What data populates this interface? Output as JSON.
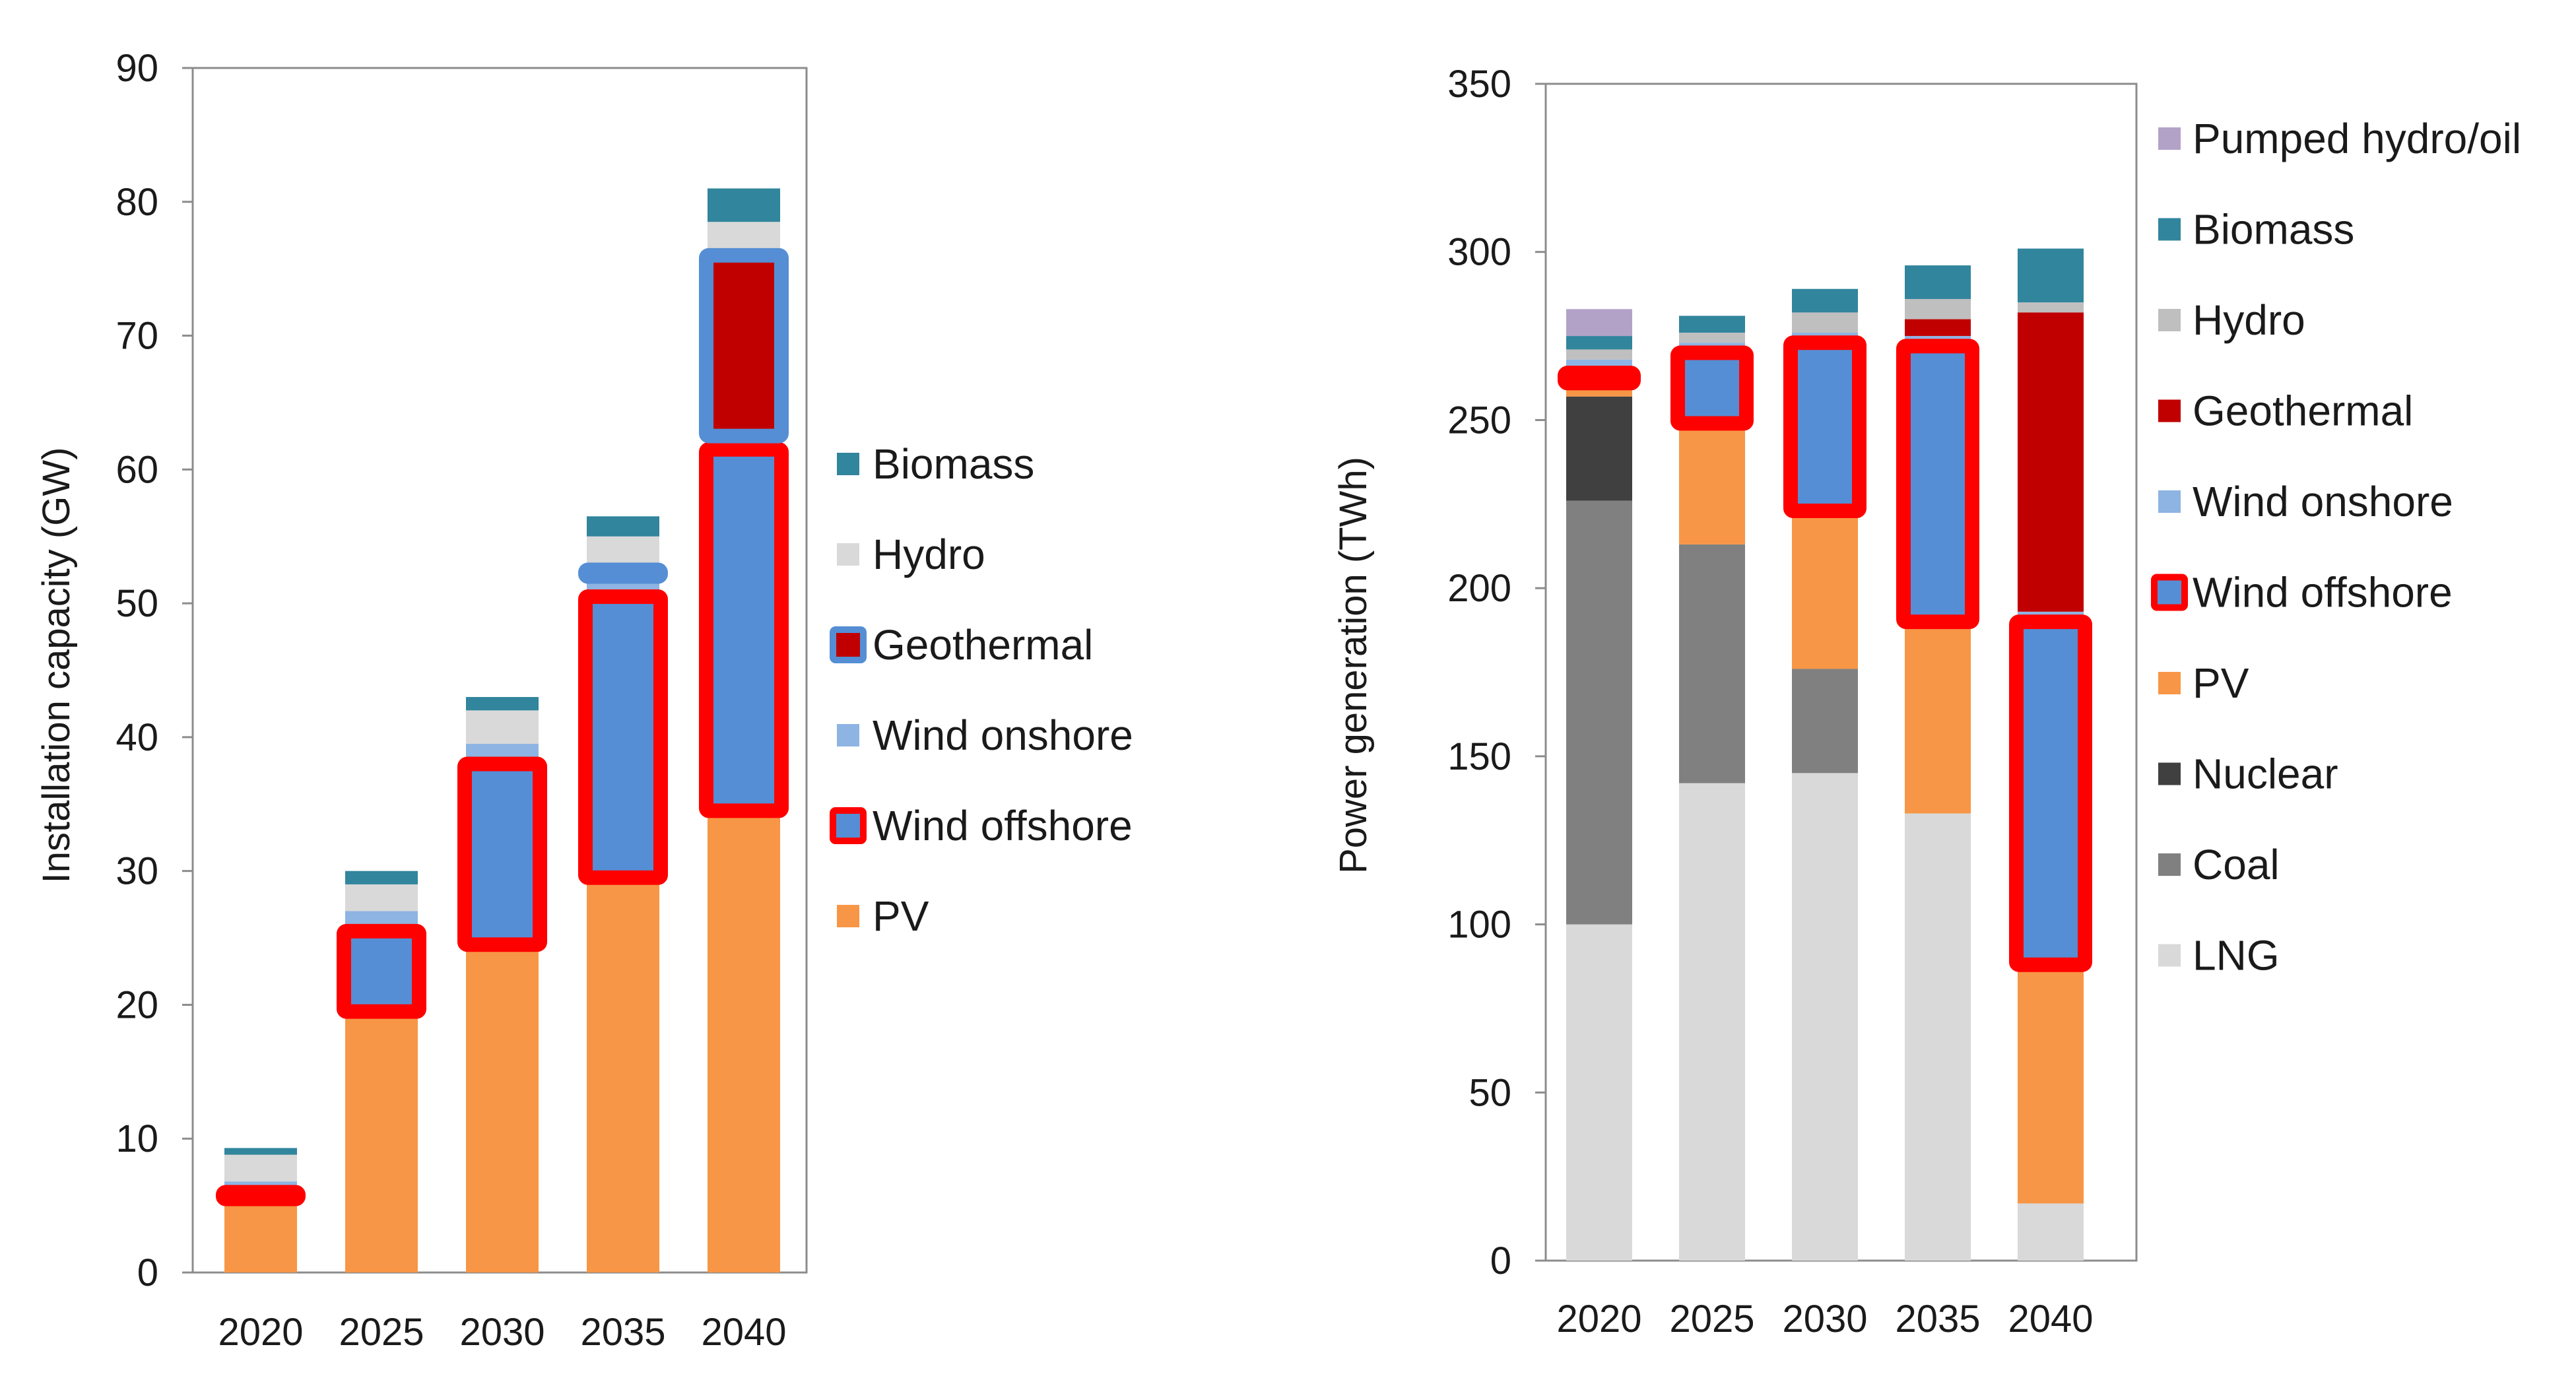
{
  "chart_data": [
    {
      "type": "bar",
      "stacked": true,
      "title": "",
      "xlabel": "",
      "ylabel": "Installation  capacity (GW)",
      "ylim": [
        0,
        90
      ],
      "yticks": [
        0,
        10,
        20,
        30,
        40,
        50,
        60,
        70,
        80,
        90
      ],
      "categories": [
        "2020",
        "2025",
        "2030",
        "2035",
        "2040"
      ],
      "series": [
        {
          "name": "PV",
          "color": "#F79646",
          "values": [
            5.5,
            19.5,
            24.5,
            29.5,
            34.5
          ]
        },
        {
          "name": "Wind offshore",
          "color": "#558ED5",
          "highlight": "#FF0000",
          "values": [
            0.5,
            6.0,
            13.5,
            21.0,
            27.0
          ]
        },
        {
          "name": "Wind onshore",
          "color": "#8DB4E2",
          "values": [
            0.8,
            1.5,
            1.5,
            1.5,
            1.0
          ]
        },
        {
          "name": "Geothermal",
          "color": "#C00000",
          "highlight": "#558ED5",
          "values": [
            0.0,
            0.0,
            0.0,
            0.5,
            13.5
          ]
        },
        {
          "name": "Hydro",
          "color": "#D9D9D9",
          "values": [
            2.0,
            2.0,
            2.5,
            2.5,
            2.5
          ]
        },
        {
          "name": "Biomass",
          "color": "#31859C",
          "values": [
            0.5,
            1.0,
            1.0,
            1.5,
            2.5
          ]
        }
      ],
      "legend": [
        "Biomass",
        "Hydro",
        "Geothermal",
        "Wind onshore",
        "Wind offshore",
        "PV"
      ],
      "legend_position": "right"
    },
    {
      "type": "bar",
      "stacked": true,
      "title": "",
      "xlabel": "",
      "ylabel": "Power generation (TWh)",
      "ylim": [
        0,
        350
      ],
      "yticks": [
        0,
        50,
        100,
        150,
        200,
        250,
        300,
        350
      ],
      "categories": [
        "2020",
        "2025",
        "2030",
        "2035",
        "2040"
      ],
      "series": [
        {
          "name": "LNG",
          "color": "#D9D9D9",
          "values": [
            100,
            142,
            145,
            133,
            17
          ]
        },
        {
          "name": "Coal",
          "color": "#808080",
          "values": [
            126,
            71,
            31,
            0,
            0
          ]
        },
        {
          "name": "Nuclear",
          "color": "#404040",
          "values": [
            31,
            0,
            0,
            0,
            0
          ]
        },
        {
          "name": "PV",
          "color": "#F79646",
          "values": [
            4,
            36,
            47,
            57,
            71
          ]
        },
        {
          "name": "Wind offshore",
          "color": "#558ED5",
          "highlight": "#FF0000",
          "values": [
            3,
            21,
            50,
            82,
            102
          ]
        },
        {
          "name": "Wind onshore",
          "color": "#8DB4E2",
          "values": [
            4,
            3,
            3,
            3,
            3
          ]
        },
        {
          "name": "Geothermal",
          "color": "#C00000",
          "values": [
            0,
            0,
            0,
            5,
            89
          ]
        },
        {
          "name": "Hydro",
          "color": "#BFBFBF",
          "values": [
            3,
            3,
            6,
            6,
            3
          ]
        },
        {
          "name": "Biomass",
          "color": "#31859C",
          "values": [
            4,
            5,
            7,
            10,
            16
          ]
        },
        {
          "name": "Pumped hydro/oil",
          "color": "#B3A2C7",
          "values": [
            8,
            0,
            0,
            0,
            0
          ]
        }
      ],
      "legend": [
        "Pumped hydro/oil",
        "Biomass",
        "Hydro",
        "Geothermal",
        "Wind onshore",
        "Wind offshore",
        "PV",
        "Nuclear",
        "Coal",
        "LNG"
      ],
      "legend_position": "right"
    }
  ]
}
